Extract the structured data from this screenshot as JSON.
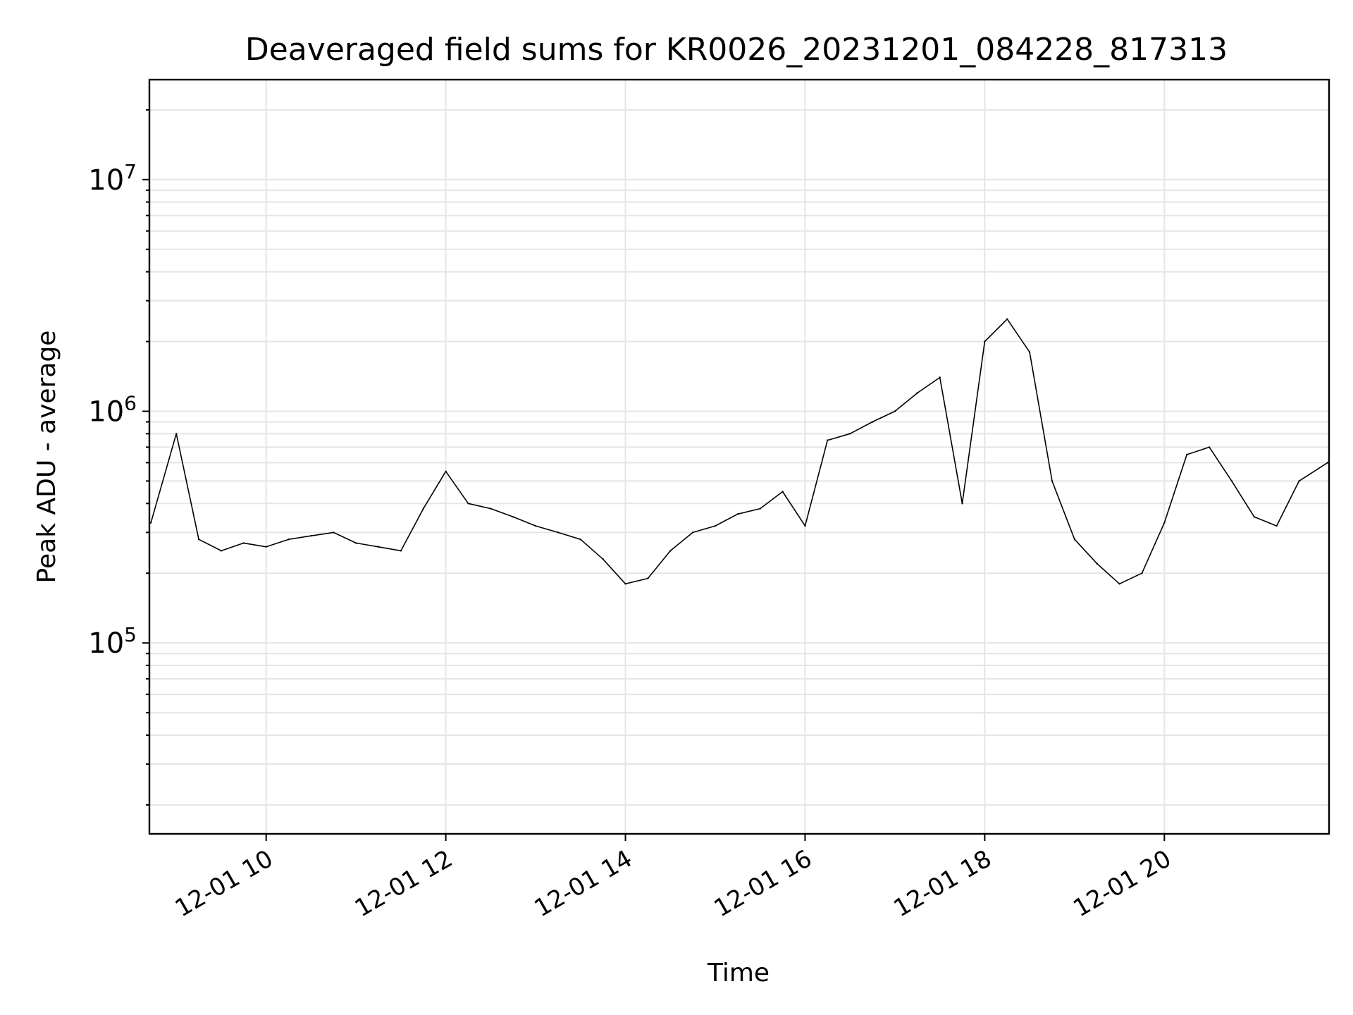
{
  "chart_data": {
    "type": "line",
    "title": "Deaveraged field sums for KR0026_20231201_084228_817313",
    "xlabel": "Time",
    "ylabel": "Peak ADU - average",
    "x_scale": "time",
    "y_scale": "log",
    "xlim": [
      "2023-12-01 08:42",
      "2023-12-01 21:50"
    ],
    "ylim": [
      15000,
      27000000
    ],
    "x_ticks": [
      "12-01 10",
      "12-01 12",
      "12-01 14",
      "12-01 16",
      "12-01 18",
      "12-01 20"
    ],
    "x_tick_times": [
      "2023-12-01 10:00",
      "2023-12-01 12:00",
      "2023-12-01 14:00",
      "2023-12-01 16:00",
      "2023-12-01 18:00",
      "2023-12-01 20:00"
    ],
    "y_ticks": [
      100000,
      1000000,
      10000000
    ],
    "y_tick_labels": [
      {
        "base": "10",
        "exp": "5"
      },
      {
        "base": "10",
        "exp": "6"
      },
      {
        "base": "10",
        "exp": "7"
      }
    ],
    "grid": true,
    "line_color": "#000000",
    "grid_color": "#e5e5e5",
    "series": [
      {
        "x": [
          "2023-12-01 08:43",
          "2023-12-01 09:00",
          "2023-12-01 09:15",
          "2023-12-01 09:30",
          "2023-12-01 09:45",
          "2023-12-01 10:00",
          "2023-12-01 10:15",
          "2023-12-01 10:30",
          "2023-12-01 10:45",
          "2023-12-01 11:00",
          "2023-12-01 11:15",
          "2023-12-01 11:30",
          "2023-12-01 11:45",
          "2023-12-01 12:00",
          "2023-12-01 12:15",
          "2023-12-01 12:30",
          "2023-12-01 12:45",
          "2023-12-01 13:00",
          "2023-12-01 13:15",
          "2023-12-01 13:30",
          "2023-12-01 13:45",
          "2023-12-01 14:00",
          "2023-12-01 14:15",
          "2023-12-01 14:30",
          "2023-12-01 14:45",
          "2023-12-01 15:00",
          "2023-12-01 15:15",
          "2023-12-01 15:30",
          "2023-12-01 15:45",
          "2023-12-01 16:00",
          "2023-12-01 16:15",
          "2023-12-01 16:30",
          "2023-12-01 16:45",
          "2023-12-01 17:00",
          "2023-12-01 17:15",
          "2023-12-01 17:30",
          "2023-12-01 17:45",
          "2023-12-01 18:00",
          "2023-12-01 18:15",
          "2023-12-01 18:30",
          "2023-12-01 18:45",
          "2023-12-01 19:00",
          "2023-12-01 19:15",
          "2023-12-01 19:30",
          "2023-12-01 19:45",
          "2023-12-01 20:00",
          "2023-12-01 20:15",
          "2023-12-01 20:30",
          "2023-12-01 20:45",
          "2023-12-01 21:00",
          "2023-12-01 21:15",
          "2023-12-01 21:30",
          "2023-12-01 21:49"
        ],
        "y": [
          330000,
          800000,
          280000,
          250000,
          270000,
          260000,
          280000,
          290000,
          300000,
          270000,
          260000,
          250000,
          380000,
          550000,
          400000,
          380000,
          350000,
          320000,
          300000,
          280000,
          230000,
          180000,
          190000,
          250000,
          300000,
          320000,
          360000,
          380000,
          450000,
          320000,
          750000,
          800000,
          900000,
          1000000,
          1200000,
          1400000,
          400000,
          2000000,
          2500000,
          1800000,
          500000,
          280000,
          220000,
          180000,
          200000,
          330000,
          650000,
          700000,
          500000,
          350000,
          320000,
          500000,
          600000
        ]
      }
    ]
  }
}
